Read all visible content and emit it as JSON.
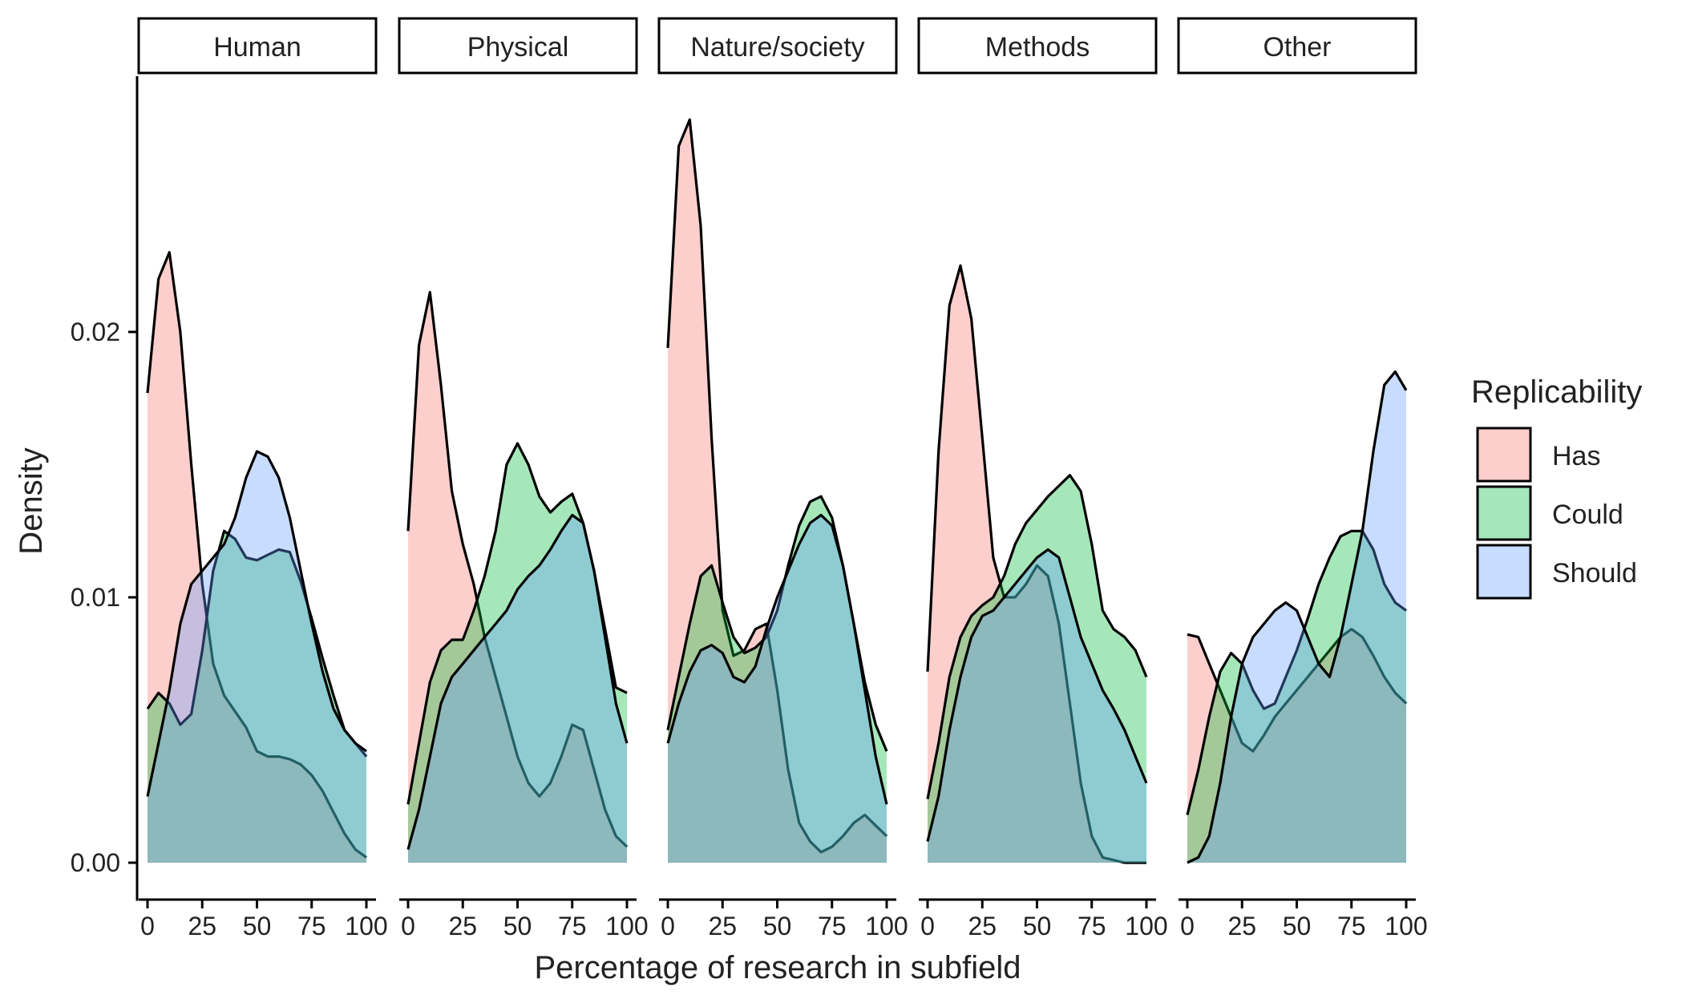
{
  "chart_data": {
    "type": "area",
    "xlabel": "Percentage of research in subfield",
    "ylabel": "Density",
    "xlim": [
      0,
      100
    ],
    "ylim": [
      0,
      0.028
    ],
    "x_ticks": [
      0,
      25,
      50,
      75,
      100
    ],
    "y_ticks": [
      0.0,
      0.01,
      0.02
    ],
    "y_tick_labels": [
      "0.00",
      "0.01",
      "0.02"
    ],
    "legend": {
      "title": "Replicability",
      "placement": "right",
      "entries": [
        "Has",
        "Could",
        "Should"
      ]
    },
    "colors": {
      "Has": "#F8766D",
      "Could": "#00BA38",
      "Should": "#619CFF"
    },
    "fill_opacity": 0.35,
    "x": [
      0,
      5,
      10,
      15,
      20,
      25,
      30,
      35,
      40,
      45,
      50,
      55,
      60,
      65,
      70,
      75,
      80,
      85,
      90,
      95,
      100
    ],
    "panels": [
      {
        "name": "Human",
        "series": [
          {
            "name": "Has",
            "values": [
              0.0177,
              0.022,
              0.023,
              0.02,
              0.015,
              0.0105,
              0.0075,
              0.0063,
              0.0057,
              0.0051,
              0.0042,
              0.004,
              0.004,
              0.0039,
              0.0037,
              0.0033,
              0.0027,
              0.0019,
              0.0011,
              0.0005,
              0.0002
            ]
          },
          {
            "name": "Could",
            "values": [
              0.0058,
              0.0064,
              0.006,
              0.0052,
              0.0056,
              0.008,
              0.011,
              0.0125,
              0.0122,
              0.0115,
              0.0114,
              0.0116,
              0.0118,
              0.0117,
              0.0106,
              0.0092,
              0.0077,
              0.0063,
              0.005,
              0.0045,
              0.004
            ]
          },
          {
            "name": "Should",
            "values": [
              0.0025,
              0.0045,
              0.0065,
              0.009,
              0.0105,
              0.011,
              0.0115,
              0.012,
              0.013,
              0.0145,
              0.0155,
              0.0153,
              0.0145,
              0.013,
              0.011,
              0.009,
              0.0072,
              0.0058,
              0.005,
              0.0045,
              0.0042
            ]
          }
        ]
      },
      {
        "name": "Physical",
        "series": [
          {
            "name": "Has",
            "values": [
              0.0125,
              0.0195,
              0.0215,
              0.018,
              0.014,
              0.012,
              0.0105,
              0.0085,
              0.007,
              0.0055,
              0.004,
              0.003,
              0.0025,
              0.003,
              0.004,
              0.0052,
              0.005,
              0.0035,
              0.002,
              0.001,
              0.0006
            ]
          },
          {
            "name": "Could",
            "values": [
              0.0022,
              0.0045,
              0.0068,
              0.008,
              0.0084,
              0.0084,
              0.0095,
              0.0108,
              0.0125,
              0.015,
              0.0158,
              0.015,
              0.0138,
              0.0132,
              0.0136,
              0.0139,
              0.0128,
              0.011,
              0.0088,
              0.0066,
              0.0064
            ]
          },
          {
            "name": "Should",
            "values": [
              0.0005,
              0.002,
              0.004,
              0.006,
              0.007,
              0.0075,
              0.008,
              0.0085,
              0.009,
              0.0095,
              0.0103,
              0.0108,
              0.0112,
              0.0118,
              0.0125,
              0.0131,
              0.0128,
              0.011,
              0.0085,
              0.006,
              0.0045
            ]
          }
        ]
      },
      {
        "name": "Nature/society",
        "series": [
          {
            "name": "Has",
            "values": [
              0.0194,
              0.027,
              0.028,
              0.024,
              0.016,
              0.0095,
              0.0078,
              0.008,
              0.0088,
              0.009,
              0.0065,
              0.0035,
              0.0015,
              0.0008,
              0.0004,
              0.0006,
              0.001,
              0.0015,
              0.0018,
              0.0014,
              0.001
            ]
          },
          {
            "name": "Could",
            "values": [
              0.005,
              0.007,
              0.009,
              0.0108,
              0.0112,
              0.0098,
              0.0085,
              0.0079,
              0.0081,
              0.0085,
              0.0095,
              0.0112,
              0.0127,
              0.0136,
              0.0138,
              0.013,
              0.0112,
              0.009,
              0.0068,
              0.0052,
              0.0042
            ]
          },
          {
            "name": "Should",
            "values": [
              0.0045,
              0.006,
              0.0072,
              0.008,
              0.0082,
              0.0079,
              0.007,
              0.0068,
              0.0074,
              0.0088,
              0.01,
              0.011,
              0.012,
              0.0128,
              0.0131,
              0.0127,
              0.0112,
              0.009,
              0.0065,
              0.004,
              0.0022
            ]
          }
        ]
      },
      {
        "name": "Methods",
        "series": [
          {
            "name": "Has",
            "values": [
              0.0072,
              0.0155,
              0.021,
              0.0225,
              0.0205,
              0.016,
              0.0115,
              0.01,
              0.01,
              0.0105,
              0.0112,
              0.0108,
              0.009,
              0.006,
              0.003,
              0.001,
              0.0002,
              0.0001,
              0.0,
              0.0,
              0.0
            ]
          },
          {
            "name": "Could",
            "values": [
              0.0024,
              0.0045,
              0.007,
              0.0085,
              0.0093,
              0.0097,
              0.01,
              0.0108,
              0.012,
              0.0128,
              0.0133,
              0.0138,
              0.0142,
              0.0146,
              0.014,
              0.012,
              0.0095,
              0.0088,
              0.0085,
              0.008,
              0.007
            ]
          },
          {
            "name": "Should",
            "values": [
              0.0008,
              0.0025,
              0.005,
              0.007,
              0.0085,
              0.0093,
              0.0095,
              0.01,
              0.0105,
              0.011,
              0.0115,
              0.0118,
              0.0115,
              0.01,
              0.0085,
              0.0075,
              0.0065,
              0.0058,
              0.005,
              0.004,
              0.003
            ]
          }
        ]
      },
      {
        "name": "Other",
        "series": [
          {
            "name": "Has",
            "values": [
              0.0086,
              0.0085,
              0.0075,
              0.0065,
              0.0055,
              0.0045,
              0.0042,
              0.0048,
              0.0055,
              0.006,
              0.0065,
              0.007,
              0.0075,
              0.008,
              0.0085,
              0.0088,
              0.0085,
              0.0078,
              0.007,
              0.0064,
              0.006
            ]
          },
          {
            "name": "Could",
            "values": [
              0.0018,
              0.0035,
              0.0055,
              0.0072,
              0.0079,
              0.0075,
              0.0065,
              0.0058,
              0.006,
              0.007,
              0.008,
              0.0092,
              0.0105,
              0.0115,
              0.0123,
              0.0125,
              0.0125,
              0.0118,
              0.0105,
              0.0098,
              0.0095
            ]
          },
          {
            "name": "Should",
            "values": [
              0.0,
              0.0002,
              0.001,
              0.003,
              0.0055,
              0.0075,
              0.0085,
              0.009,
              0.0095,
              0.0098,
              0.0095,
              0.0085,
              0.0075,
              0.007,
              0.0085,
              0.0105,
              0.0125,
              0.0155,
              0.018,
              0.0185,
              0.0178
            ]
          }
        ]
      }
    ]
  }
}
